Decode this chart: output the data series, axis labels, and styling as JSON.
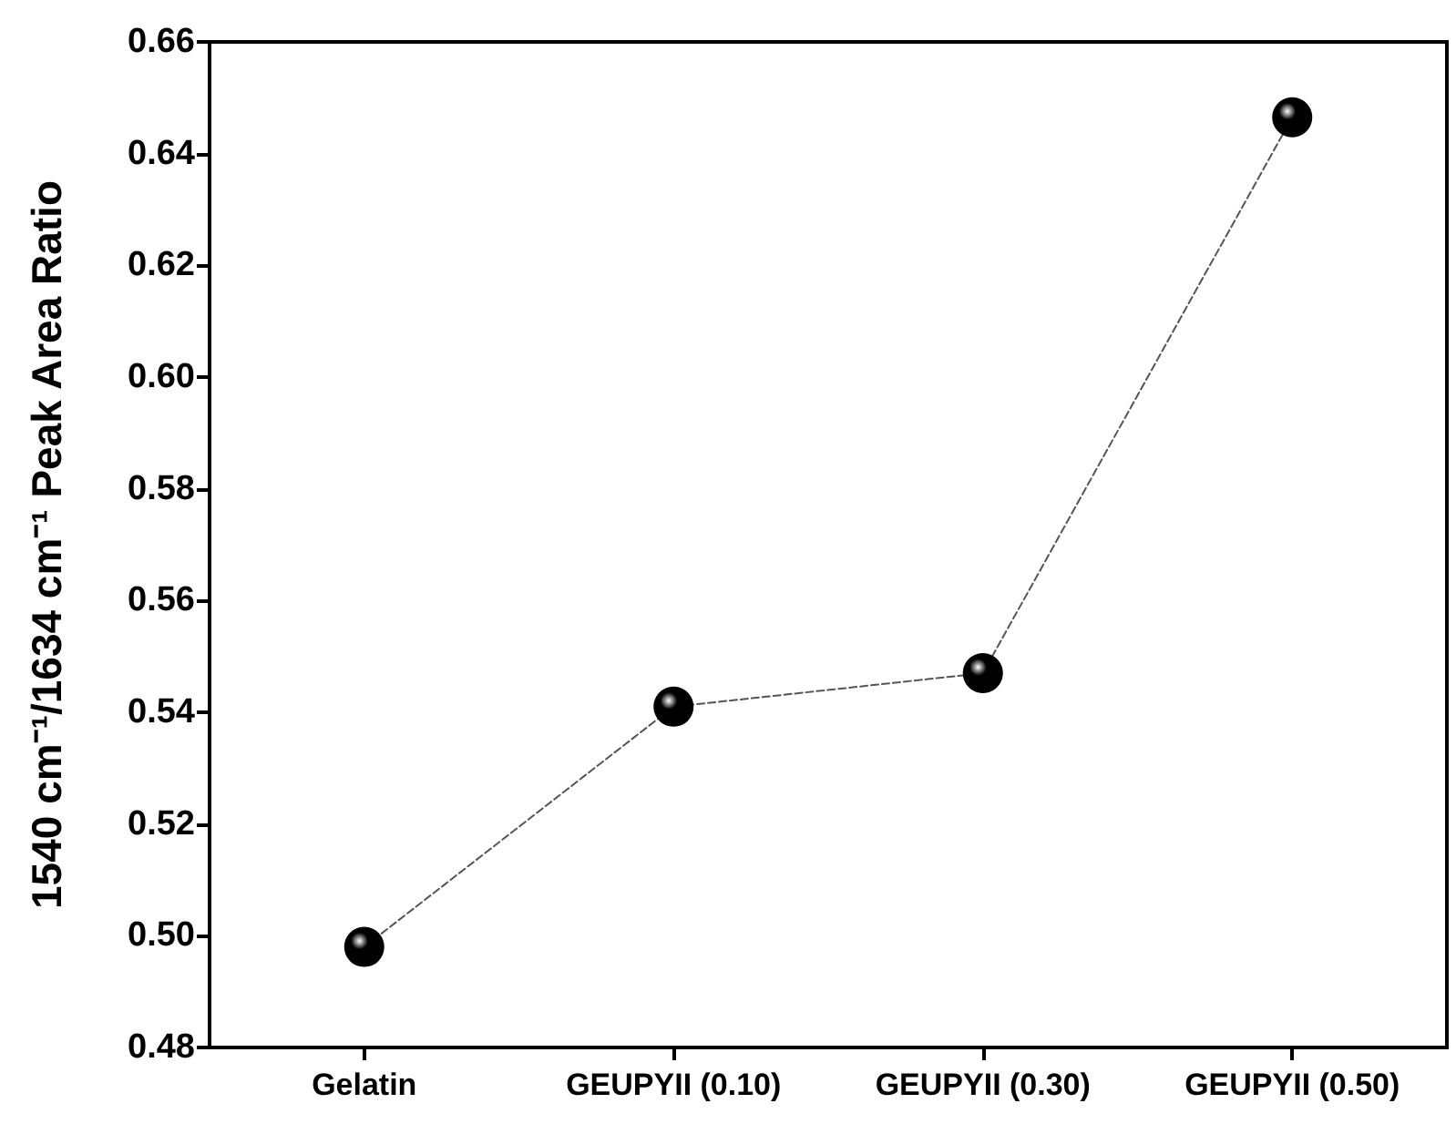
{
  "chart_data": {
    "type": "line",
    "ylabel": "1540 cm⁻¹/1634 cm⁻¹ Peak Area Ratio",
    "categories": [
      "Gelatin",
      "GEUPYII (0.10)",
      "GEUPYII (0.30)",
      "GEUPYII (0.50)"
    ],
    "series": [
      {
        "color": "#000000",
        "values": [
          0.498,
          0.541,
          0.547,
          0.6465
        ]
      }
    ],
    "ylim": [
      0.48,
      0.66
    ],
    "yticks": [
      0.48,
      {
        "value": 0.5,
        "label": "0.50"
      },
      0.52,
      0.54,
      0.56,
      0.58,
      {
        "value": 0.6,
        "label": "0.60"
      },
      0.62,
      0.64,
      0.66
    ],
    "grid": false,
    "marker": "circle",
    "line_style": "dashed"
  }
}
